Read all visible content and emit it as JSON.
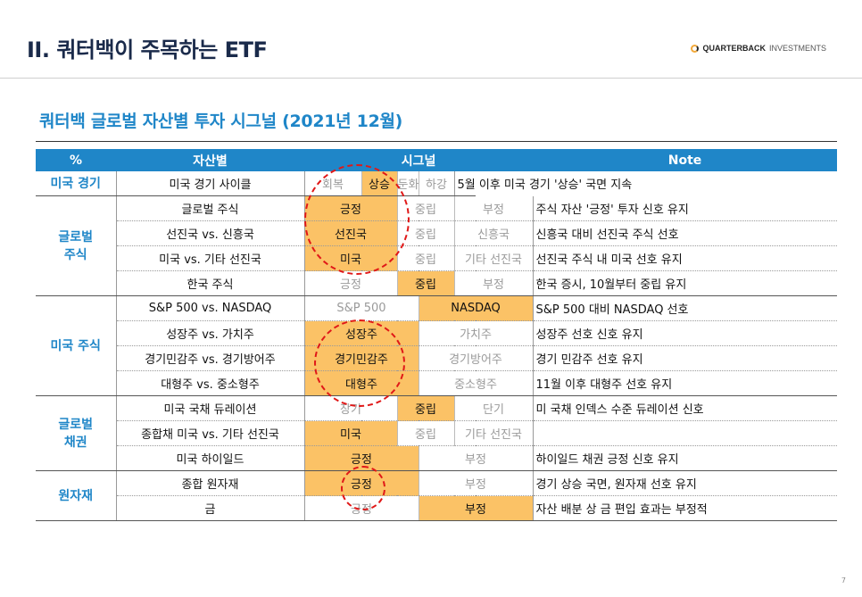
{
  "header": {
    "title": "II. 쿼터백이 주목하는 ETF",
    "logo_bold": "QUARTERBACK",
    "logo_rest": "INVESTMENTS"
  },
  "subtitle": "쿼터백 글로벌 자산별 투자 시그널 (2021년 12월)",
  "columns": [
    "%",
    "자산별",
    "시그널",
    "Note"
  ],
  "rows": [
    {
      "group": "미국 경기",
      "asset": "미국 경기 사이클",
      "signals": [
        [
          "회복",
          false,
          1
        ],
        [
          "상승",
          true,
          1
        ],
        [
          "둔화",
          false,
          1
        ],
        [
          "하강",
          false,
          1
        ]
      ],
      "note": "5월 이후 미국 경기 '상승' 국면 지속"
    },
    {
      "group": "글로벌\n주식",
      "asset": "글로벌 주식",
      "signals": [
        [
          "긍정",
          true,
          2
        ],
        [
          "중립",
          false,
          2
        ],
        [
          "부정",
          false,
          2
        ]
      ],
      "note": "주식 자산 '긍정' 투자 신호 유지"
    },
    {
      "asset": "선진국 vs. 신흥국",
      "signals": [
        [
          "선진국",
          true,
          2
        ],
        [
          "중립",
          false,
          2
        ],
        [
          "신흥국",
          false,
          2
        ]
      ],
      "note": "신흥국 대비 선진국 주식 선호"
    },
    {
      "asset": "미국 vs. 기타 선진국",
      "signals": [
        [
          "미국",
          true,
          2
        ],
        [
          "중립",
          false,
          2
        ],
        [
          "기타 선진국",
          false,
          2
        ]
      ],
      "note": "선진국 주식 내 미국 선호 유지"
    },
    {
      "asset": "한국 주식",
      "signals": [
        [
          "긍정",
          false,
          2
        ],
        [
          "중립",
          true,
          2
        ],
        [
          "부정",
          false,
          2
        ]
      ],
      "note": "한국 증시, 10월부터 중립 유지"
    },
    {
      "group": "미국 주식",
      "asset": "S&P 500 vs. NASDAQ",
      "signals": [
        [
          "S&P 500",
          false,
          3
        ],
        [
          "NASDAQ",
          true,
          3
        ]
      ],
      "note": "S&P 500 대비 NASDAQ 선호"
    },
    {
      "asset": "성장주 vs. 가치주",
      "signals": [
        [
          "성장주",
          true,
          3
        ],
        [
          "가치주",
          false,
          3
        ]
      ],
      "note": "성장주 선호 신호 유지"
    },
    {
      "asset": "경기민감주 vs. 경기방어주",
      "signals": [
        [
          "경기민감주",
          true,
          3
        ],
        [
          "경기방어주",
          false,
          3
        ]
      ],
      "note": "경기 민감주 선호 유지"
    },
    {
      "asset": "대형주 vs. 중소형주",
      "signals": [
        [
          "대형주",
          true,
          3
        ],
        [
          "중소형주",
          false,
          3
        ]
      ],
      "note": "11월 이후 대형주 선호 유지"
    },
    {
      "group": "글로벌\n채권",
      "asset": "미국 국채 듀레이션",
      "signals": [
        [
          "장기",
          false,
          2
        ],
        [
          "중립",
          true,
          2
        ],
        [
          "단기",
          false,
          2
        ]
      ],
      "note": "미 국채 인덱스 수준 듀레이션 신호"
    },
    {
      "asset": "종합채 미국 vs. 기타 선진국",
      "signals": [
        [
          "미국",
          true,
          2
        ],
        [
          "중립",
          false,
          2
        ],
        [
          "기타 선진국",
          false,
          2
        ]
      ],
      "note": ""
    },
    {
      "asset": "미국 하이일드",
      "signals": [
        [
          "긍정",
          true,
          3
        ],
        [
          "부정",
          false,
          3
        ]
      ],
      "note": "하이일드 채권 긍정 신호 유지"
    },
    {
      "group": "원자재",
      "asset": "종합 원자재",
      "signals": [
        [
          "긍정",
          true,
          3
        ],
        [
          "부정",
          false,
          3
        ]
      ],
      "note": "경기 상승 국면, 원자재 선호 유지"
    },
    {
      "asset": "금",
      "signals": [
        [
          "긍정",
          false,
          3
        ],
        [
          "부정",
          true,
          3
        ]
      ],
      "note": "자산 배분 상 금 편입 효과는 부정적"
    }
  ],
  "group_spans": {
    "0": 1,
    "1": 4,
    "5": 4,
    "9": 3,
    "12": 2
  },
  "page_number": "7"
}
